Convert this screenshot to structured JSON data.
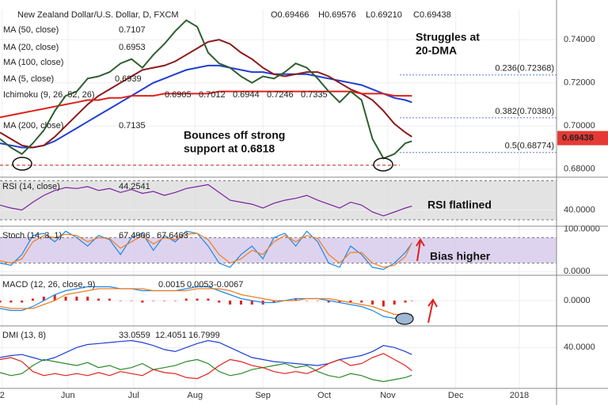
{
  "chart_data": [
    {
      "type": "line",
      "title": "New Zealand Dollar/U.S. Dollar, D, FXCM",
      "ohlc": [
        "O0.69466",
        "H0.69576",
        "L0.69210",
        "C0.69438"
      ],
      "x": [
        0,
        5,
        10,
        15,
        20,
        25,
        30,
        35,
        40,
        45,
        50,
        55,
        60,
        65,
        70,
        75,
        80,
        85,
        90,
        95,
        100,
        105,
        110,
        115,
        120,
        125,
        130,
        135,
        140,
        145,
        150,
        155,
        160,
        165,
        170,
        175,
        180,
        185,
        188
      ],
      "xlim": [
        0,
        254
      ],
      "xticks": [
        {
          "value": 1,
          "label": "2"
        },
        {
          "value": 31,
          "label": "Jun"
        },
        {
          "value": 61,
          "label": "Jul"
        },
        {
          "value": 89,
          "label": "Aug"
        },
        {
          "value": 120,
          "label": "Sep"
        },
        {
          "value": 148,
          "label": "Oct"
        },
        {
          "value": 177,
          "label": "Nov"
        },
        {
          "value": 208,
          "label": "Dec"
        },
        {
          "value": 237,
          "label": "2018"
        }
      ],
      "ylim": [
        0.677,
        0.754
      ],
      "yticks": [
        {
          "value": 0.68,
          "label": "0.68000"
        },
        {
          "value": 0.7,
          "label": "0.70000"
        },
        {
          "value": 0.72,
          "label": "0.72000"
        },
        {
          "value": 0.74,
          "label": "0.74000"
        }
      ],
      "series": [
        {
          "name": "MA (50, close)",
          "color": "#1e3fd4",
          "readout": 0.7107,
          "values": [
            0.692,
            0.691,
            0.69,
            0.69,
            0.691,
            0.693,
            0.696,
            0.699,
            0.702,
            0.705,
            0.708,
            0.711,
            0.714,
            0.717,
            0.72,
            0.722,
            0.724,
            0.726,
            0.727,
            0.728,
            0.728,
            0.727,
            0.726,
            0.725,
            0.725,
            0.724,
            0.724,
            0.724,
            0.724,
            0.723,
            0.722,
            0.721,
            0.72,
            0.719,
            0.717,
            0.715,
            0.713,
            0.712,
            0.711
          ]
        },
        {
          "name": "MA (20, close)",
          "color": "#8b1a1a",
          "readout": 0.6953,
          "values": [
            0.697,
            0.694,
            0.691,
            0.69,
            0.691,
            0.695,
            0.7,
            0.705,
            0.71,
            0.714,
            0.717,
            0.72,
            0.723,
            0.726,
            0.727,
            0.728,
            0.73,
            0.733,
            0.736,
            0.739,
            0.74,
            0.738,
            0.734,
            0.731,
            0.727,
            0.724,
            0.723,
            0.724,
            0.725,
            0.725,
            0.723,
            0.72,
            0.717,
            0.715,
            0.712,
            0.707,
            0.701,
            0.697,
            0.695
          ]
        },
        {
          "name": "MA (200, close)",
          "color": "#e0201b",
          "readout": 0.7135,
          "values": [
            0.704,
            0.705,
            0.706,
            0.707,
            0.708,
            0.709,
            0.71,
            0.711,
            0.712,
            0.712,
            0.713,
            0.713,
            0.714,
            0.714,
            0.714,
            0.715,
            0.715,
            0.715,
            0.715,
            0.715,
            0.716,
            0.716,
            0.716,
            0.716,
            0.716,
            0.716,
            0.716,
            0.716,
            0.716,
            0.716,
            0.716,
            0.716,
            0.716,
            0.715,
            0.715,
            0.715,
            0.714,
            0.714,
            0.714
          ]
        },
        {
          "color": "#2f5f2f",
          "values": [
            0.694,
            0.69,
            0.687,
            0.692,
            0.698,
            0.707,
            0.714,
            0.716,
            0.722,
            0.723,
            0.725,
            0.729,
            0.731,
            0.727,
            0.733,
            0.738,
            0.744,
            0.749,
            0.746,
            0.734,
            0.729,
            0.727,
            0.723,
            0.72,
            0.723,
            0.722,
            0.725,
            0.729,
            0.727,
            0.722,
            0.716,
            0.711,
            0.716,
            0.712,
            0.694,
            0.685,
            0.687,
            0.692,
            0.693
          ]
        }
      ],
      "legend_extra": [
        {
          "name": "MA (100, close)",
          "color": "#999999",
          "readouts": []
        },
        {
          "name": "MA (5, close)",
          "color": "#1e3fd4",
          "readouts": [
            0.6939
          ]
        },
        {
          "name": "Ichimoku (9, 26, 52, 26)",
          "color": "#2a8a2a",
          "readouts": [
            0.6905,
            0.7012,
            0.6944,
            0.7246,
            0.7335
          ]
        }
      ],
      "last_value": 0.69438,
      "fib_levels": [
        {
          "value": 0.72368,
          "label": "0.236(0.72368)"
        },
        {
          "value": 0.7038,
          "label": "0.382(0.70380)"
        },
        {
          "value": 0.68774,
          "label": "0.5(0.68774)"
        }
      ],
      "support": 0.6818,
      "annotations": [
        [
          "Struggles at",
          "20-DMA"
        ],
        [
          "Bounces off strong",
          "support at 0.6818"
        ]
      ]
    },
    {
      "type": "line",
      "title": "RSI (14, close)",
      "readouts": [
        44.2541
      ],
      "ylim": [
        25,
        72
      ],
      "band": [
        30,
        70
      ],
      "yticks": [
        {
          "value": 40,
          "label": "40.0000"
        }
      ],
      "series": [
        {
          "color": "#7b1fa2",
          "values": [
            45,
            42,
            40,
            48,
            55,
            60,
            63,
            62,
            64,
            60,
            62,
            58,
            61,
            57,
            59,
            55,
            58,
            62,
            64,
            66,
            58,
            50,
            48,
            46,
            42,
            47,
            50,
            52,
            55,
            50,
            46,
            42,
            48,
            45,
            38,
            34,
            38,
            42,
            44
          ]
        }
      ],
      "annotations": [
        [
          "RSI flatlined"
        ]
      ]
    },
    {
      "type": "line",
      "title": "Stoch (14, 3, 1)",
      "readouts": [
        67.4906,
        67.6463
      ],
      "ylim": [
        -5,
        103
      ],
      "band": [
        20,
        80
      ],
      "yticks": [
        {
          "value": 0,
          "label": "0.0000"
        },
        {
          "value": 100,
          "label": "100.0000"
        }
      ],
      "series": [
        {
          "color": "#1e88e5",
          "values": [
            20,
            15,
            40,
            85,
            90,
            70,
            95,
            80,
            60,
            85,
            75,
            40,
            80,
            90,
            50,
            85,
            70,
            95,
            90,
            60,
            20,
            10,
            40,
            60,
            30,
            80,
            90,
            60,
            95,
            70,
            20,
            10,
            60,
            40,
            10,
            5,
            20,
            45,
            67
          ]
        },
        {
          "color": "#ef7d22",
          "values": [
            25,
            20,
            30,
            70,
            85,
            80,
            88,
            85,
            70,
            80,
            78,
            55,
            70,
            85,
            65,
            80,
            75,
            88,
            90,
            75,
            40,
            20,
            30,
            50,
            40,
            70,
            85,
            70,
            85,
            78,
            40,
            20,
            45,
            45,
            20,
            10,
            15,
            35,
            68
          ]
        }
      ],
      "annotations": [
        [
          "Bias higher"
        ]
      ]
    },
    {
      "type": "line",
      "title": "MACD (12, 26, close, 9)",
      "readouts": [
        0.0015,
        0.0053,
        -0.0067
      ],
      "ylim": [
        -0.012,
        0.012
      ],
      "yticks": [
        {
          "value": 0,
          "label": "0.0000"
        }
      ],
      "series": [
        {
          "kind": "bar",
          "color": "#e0201b",
          "values": [
            -0.001,
            -0.001,
            -0.001,
            0.001,
            0.002,
            0.003,
            0.002,
            0.002,
            0.002,
            0.001,
            0.001,
            0,
            0,
            -0.001,
            0,
            0,
            0,
            0.001,
            0.001,
            0.001,
            -0.001,
            -0.002,
            -0.002,
            -0.002,
            -0.002,
            -0.001,
            0,
            0.001,
            0,
            0,
            -0.001,
            -0.001,
            -0.001,
            -0.001,
            -0.002,
            -0.003,
            -0.002,
            -0.001,
            0
          ]
        },
        {
          "color": "#1e88e5",
          "values": [
            -0.004,
            -0.005,
            -0.005,
            -0.003,
            0,
            0.003,
            0.005,
            0.006,
            0.007,
            0.007,
            0.007,
            0.006,
            0.006,
            0.005,
            0.005,
            0.005,
            0.005,
            0.006,
            0.007,
            0.007,
            0.005,
            0.003,
            0.001,
            0,
            -0.001,
            -0.001,
            0,
            0.001,
            0.001,
            0.001,
            0,
            -0.001,
            -0.002,
            -0.003,
            -0.005,
            -0.008,
            -0.009,
            -0.008,
            -0.007
          ]
        },
        {
          "color": "#ef7d22",
          "values": [
            -0.003,
            -0.004,
            -0.004,
            -0.004,
            -0.002,
            0,
            0.003,
            0.004,
            0.005,
            0.006,
            0.006,
            0.006,
            0.006,
            0.006,
            0.005,
            0.005,
            0.005,
            0.005,
            0.006,
            0.006,
            0.006,
            0.005,
            0.003,
            0.002,
            0.001,
            0,
            0,
            0,
            0.001,
            0.001,
            0.001,
            0,
            -0.001,
            -0.002,
            -0.003,
            -0.005,
            -0.007,
            -0.007,
            -0.007
          ]
        }
      ],
      "annotations": []
    },
    {
      "type": "line",
      "title": "DMI (13, 8)",
      "readouts": [
        33.0559,
        12.4051,
        16.7999
      ],
      "ylim": [
        0,
        60
      ],
      "yticks": [
        {
          "value": 40,
          "label": "40.0000"
        }
      ],
      "series": [
        {
          "color": "#1e3fd4",
          "values": [
            30,
            32,
            33,
            30,
            27,
            30,
            35,
            40,
            43,
            44,
            45,
            46,
            47,
            45,
            42,
            38,
            36,
            40,
            44,
            47,
            45,
            40,
            35,
            30,
            28,
            26,
            25,
            24,
            23,
            22,
            24,
            28,
            30,
            32,
            36,
            42,
            40,
            36,
            33
          ]
        },
        {
          "color": "#2a8a2a",
          "values": [
            15,
            12,
            14,
            22,
            28,
            26,
            24,
            22,
            25,
            20,
            22,
            18,
            20,
            24,
            18,
            20,
            22,
            26,
            28,
            24,
            16,
            12,
            14,
            18,
            20,
            22,
            24,
            20,
            22,
            16,
            12,
            10,
            14,
            12,
            8,
            6,
            8,
            10,
            12.4
          ]
        },
        {
          "color": "#e0201b",
          "values": [
            28,
            30,
            26,
            16,
            12,
            14,
            12,
            14,
            12,
            15,
            12,
            16,
            14,
            12,
            18,
            15,
            14,
            10,
            9,
            14,
            22,
            28,
            26,
            22,
            20,
            16,
            14,
            16,
            14,
            18,
            24,
            28,
            22,
            24,
            30,
            34,
            28,
            22,
            16.8
          ]
        }
      ],
      "annotations": []
    }
  ]
}
